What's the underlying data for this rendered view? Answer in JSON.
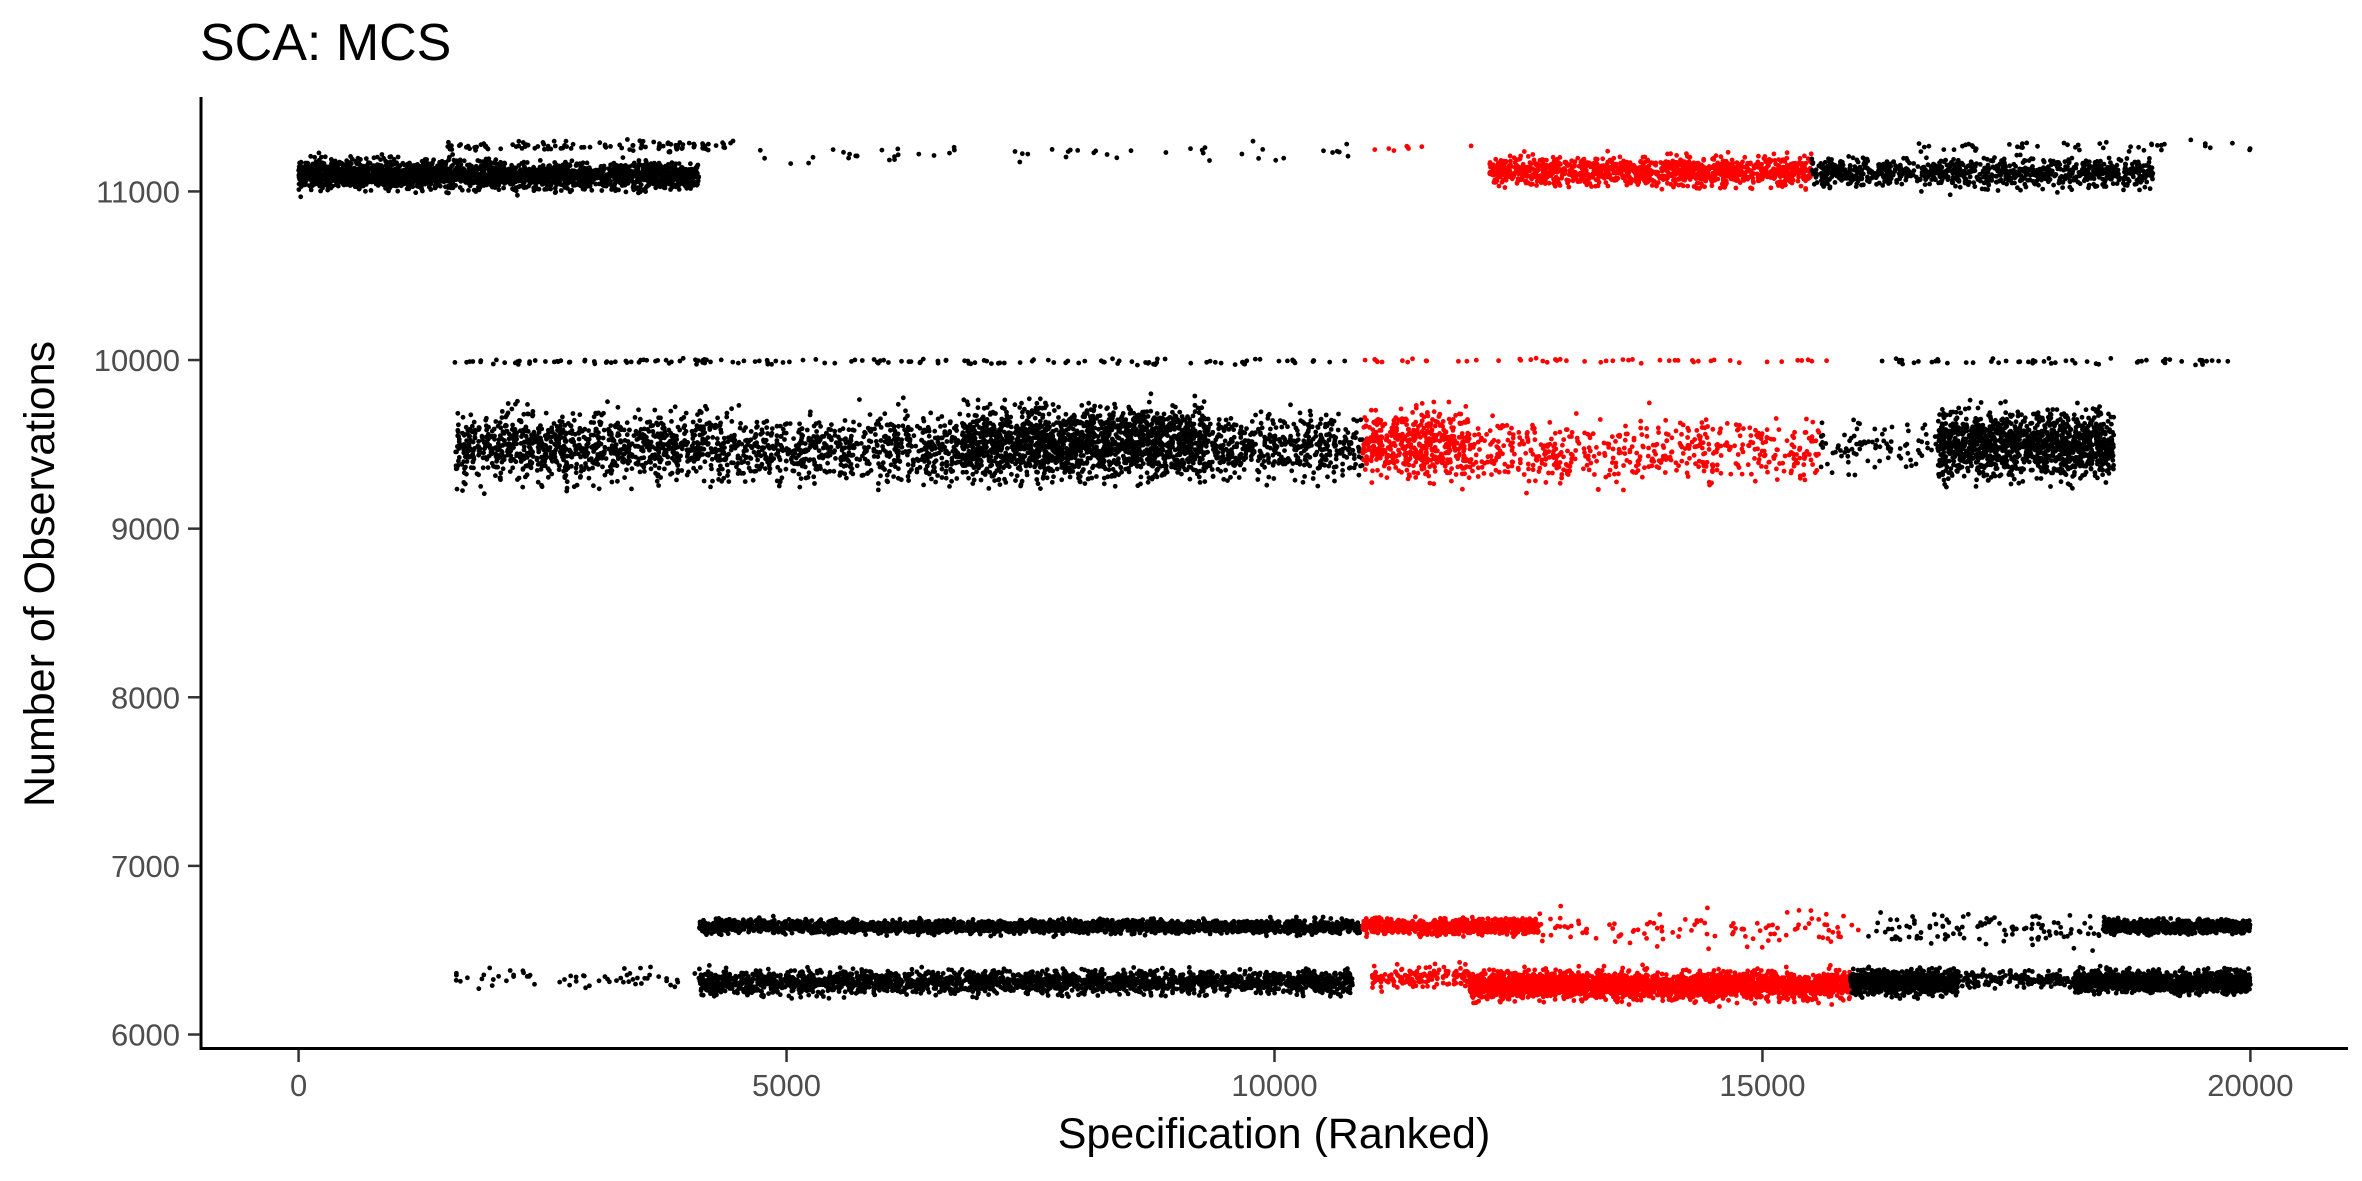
{
  "chart_data": {
    "type": "scatter",
    "title": "SCA: MCS",
    "xlabel": "Specification (Ranked)",
    "ylabel": "Number of Observations",
    "xlim": [
      -1000,
      21000
    ],
    "ylim": [
      5920,
      11560
    ],
    "x_ticks": [
      0,
      5000,
      10000,
      15000,
      20000
    ],
    "y_ticks": [
      6000,
      7000,
      8000,
      9000,
      10000,
      11000
    ],
    "x_tick_labels": [
      "0",
      "5000",
      "10000",
      "15000",
      "20000"
    ],
    "y_tick_labels": [
      "6000",
      "7000",
      "8000",
      "9000",
      "10000",
      "11000"
    ],
    "grid": false,
    "legend": "none",
    "colors": {
      "default": "#000000",
      "highlight": "#ff0000"
    },
    "series_description": "Each point is a specification (x = rank, y = number of observations); highlighted specifications drawn in red",
    "clusters": [
      {
        "color": "default",
        "x_range": [
          0,
          1700
        ],
        "y_center": 11100,
        "y_spread": 90,
        "count": 1100
      },
      {
        "color": "default",
        "x_range": [
          1700,
          4100
        ],
        "y_center": 11090,
        "y_spread": 80,
        "count": 1300
      },
      {
        "color": "default",
        "x_range": [
          1500,
          4500
        ],
        "y_center": 11270,
        "y_spread": 30,
        "count": 110
      },
      {
        "color": "default",
        "x_range": [
          4500,
          10800
        ],
        "y_center": 11230,
        "y_spread": 60,
        "count": 55
      },
      {
        "color": "highlight",
        "x_range": [
          11000,
          12200
        ],
        "y_center": 11260,
        "y_spread": 20,
        "count": 8
      },
      {
        "color": "highlight",
        "x_range": [
          12200,
          15500
        ],
        "y_center": 11120,
        "y_spread": 90,
        "count": 1100
      },
      {
        "color": "default",
        "x_range": [
          15500,
          19000
        ],
        "y_center": 11110,
        "y_spread": 85,
        "count": 900
      },
      {
        "color": "default",
        "x_range": [
          16500,
          20000
        ],
        "y_center": 11270,
        "y_spread": 30,
        "count": 45
      },
      {
        "color": "default",
        "x_range": [
          1600,
          10900
        ],
        "y_center": 9990,
        "y_spread": 18,
        "count": 150
      },
      {
        "color": "highlight",
        "x_range": [
          10900,
          15700
        ],
        "y_center": 9995,
        "y_spread": 14,
        "count": 50
      },
      {
        "color": "default",
        "x_range": [
          16000,
          20000
        ],
        "y_center": 9990,
        "y_spread": 18,
        "count": 55
      },
      {
        "color": "default",
        "x_range": [
          1600,
          4200
        ],
        "y_center": 9490,
        "y_spread": 190,
        "count": 1000
      },
      {
        "color": "default",
        "x_range": [
          4200,
          6800
        ],
        "y_center": 9470,
        "y_spread": 200,
        "count": 750
      },
      {
        "color": "default",
        "x_range": [
          6800,
          9300
        ],
        "y_center": 9510,
        "y_spread": 210,
        "count": 1800
      },
      {
        "color": "default",
        "x_range": [
          9300,
          10900
        ],
        "y_center": 9490,
        "y_spread": 190,
        "count": 450
      },
      {
        "color": "highlight",
        "x_range": [
          10900,
          12000
        ],
        "y_center": 9500,
        "y_spread": 200,
        "count": 500
      },
      {
        "color": "highlight",
        "x_range": [
          12000,
          15600
        ],
        "y_center": 9470,
        "y_spread": 190,
        "count": 520
      },
      {
        "color": "default",
        "x_range": [
          15600,
          16800
        ],
        "y_center": 9500,
        "y_spread": 160,
        "count": 90
      },
      {
        "color": "default",
        "x_range": [
          16800,
          18600
        ],
        "y_center": 9500,
        "y_spread": 200,
        "count": 1300
      },
      {
        "color": "default",
        "x_range": [
          4100,
          10900
        ],
        "y_center": 6640,
        "y_spread": 40,
        "count": 2300
      },
      {
        "color": "highlight",
        "x_range": [
          10900,
          12700
        ],
        "y_center": 6640,
        "y_spread": 45,
        "count": 800
      },
      {
        "color": "highlight",
        "x_range": [
          12700,
          16000
        ],
        "y_center": 6620,
        "y_spread": 100,
        "count": 110
      },
      {
        "color": "default",
        "x_range": [
          16000,
          18500
        ],
        "y_center": 6620,
        "y_spread": 100,
        "count": 110
      },
      {
        "color": "default",
        "x_range": [
          18500,
          20000
        ],
        "y_center": 6640,
        "y_spread": 40,
        "count": 800
      },
      {
        "color": "default",
        "x_range": [
          4100,
          10800
        ],
        "y_center": 6310,
        "y_spread": 70,
        "count": 2300
      },
      {
        "color": "default",
        "x_range": [
          1600,
          4100
        ],
        "y_center": 6330,
        "y_spread": 55,
        "count": 60
      },
      {
        "color": "highlight",
        "x_range": [
          11000,
          12000
        ],
        "y_center": 6340,
        "y_spread": 70,
        "count": 150
      },
      {
        "color": "highlight",
        "x_range": [
          12000,
          15900
        ],
        "y_center": 6290,
        "y_spread": 80,
        "count": 2600
      },
      {
        "color": "default",
        "x_range": [
          15900,
          17000
        ],
        "y_center": 6310,
        "y_spread": 75,
        "count": 900
      },
      {
        "color": "default",
        "x_range": [
          17000,
          18200
        ],
        "y_center": 6330,
        "y_spread": 50,
        "count": 180
      },
      {
        "color": "default",
        "x_range": [
          18200,
          20000
        ],
        "y_center": 6310,
        "y_spread": 65,
        "count": 1300
      }
    ]
  }
}
